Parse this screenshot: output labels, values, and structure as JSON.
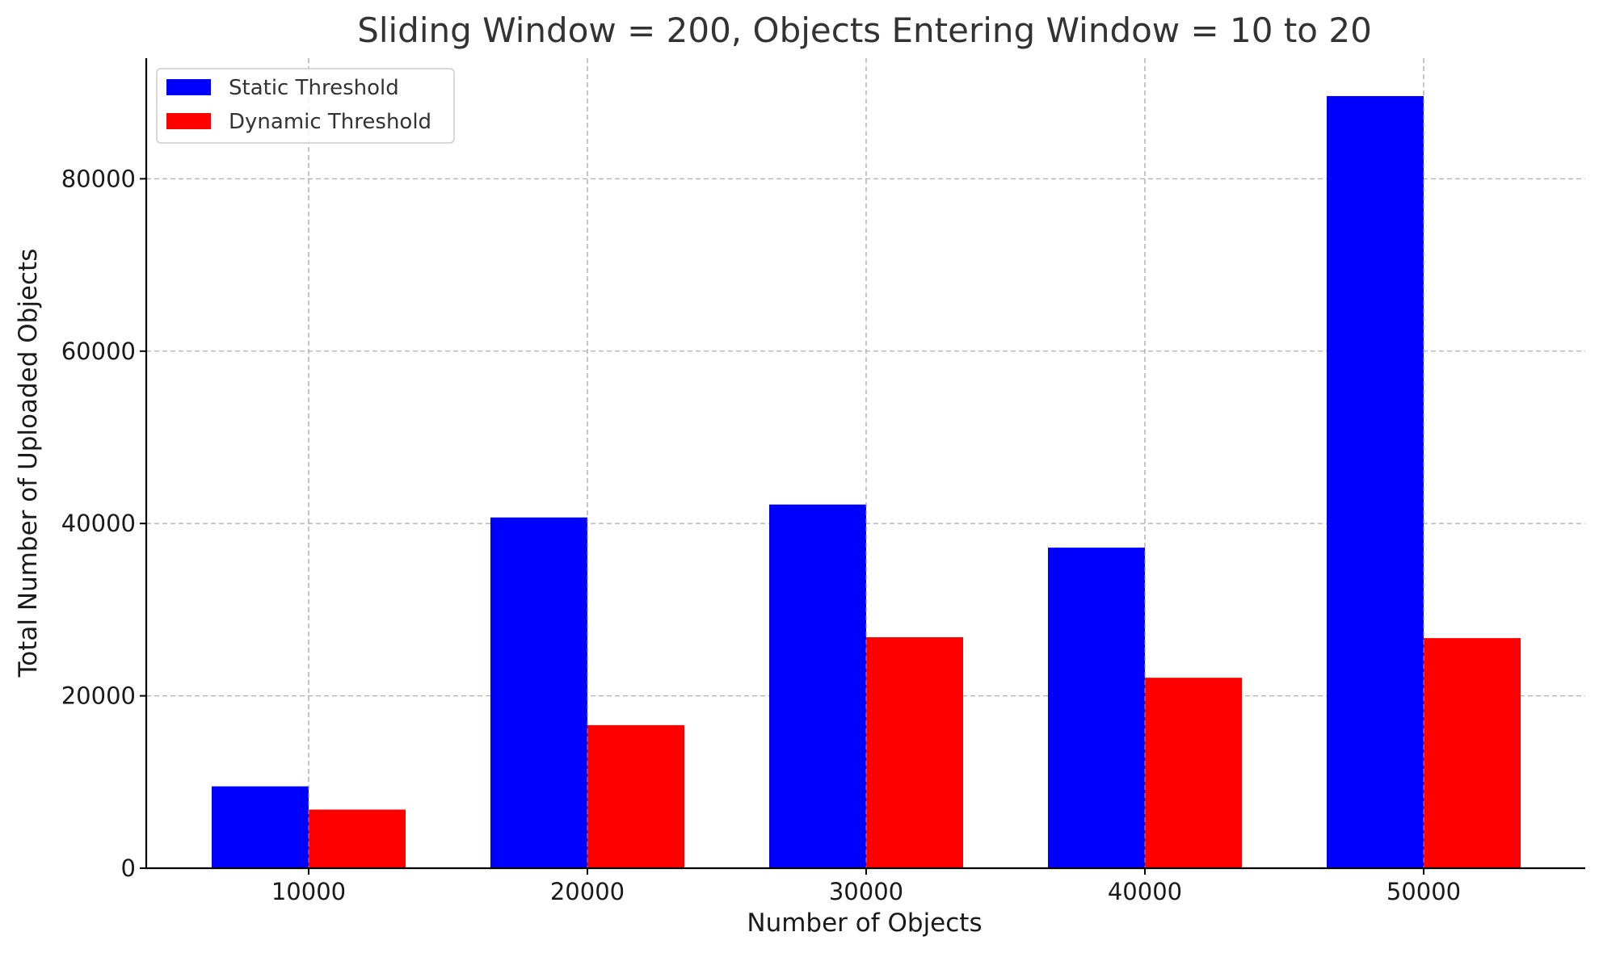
{
  "chart_data": {
    "type": "bar",
    "title": "Sliding Window = 200, Objects Entering Window = 10 to 20",
    "xlabel": "Number of Objects",
    "ylabel": "Total Number of Uploaded Objects",
    "categories": [
      "10000",
      "20000",
      "30000",
      "40000",
      "50000"
    ],
    "series": [
      {
        "name": "Static Threshold",
        "color": "#0000ff",
        "values": [
          9500,
          40700,
          42200,
          37200,
          89600
        ]
      },
      {
        "name": "Dynamic Threshold",
        "color": "#ff0000",
        "values": [
          6800,
          16600,
          26800,
          22100,
          26700
        ]
      }
    ],
    "ylim": [
      0,
      94000
    ],
    "yticks": [
      0,
      20000,
      40000,
      60000,
      80000
    ],
    "grid": true,
    "legend_position": "top-left"
  }
}
